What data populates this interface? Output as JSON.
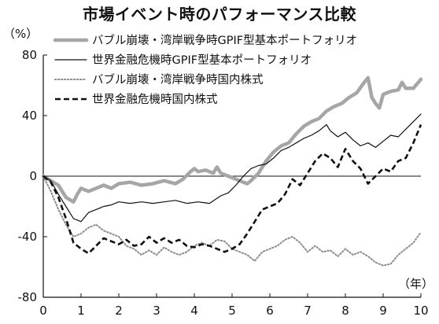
{
  "chart_data": {
    "type": "line",
    "title": "市場イベント時のパフォーマンス比較",
    "ylabel": "（%）",
    "xlabel": "（年）",
    "xlim": [
      0,
      10
    ],
    "ylim": [
      -80,
      80
    ],
    "x_ticks": [
      "0",
      "1",
      "2",
      "3",
      "4",
      "5",
      "6",
      "7",
      "8",
      "9",
      "10"
    ],
    "y_ticks": [
      "80",
      "40",
      "0",
      "-40",
      "-80"
    ],
    "y_tick_values": [
      80,
      40,
      0,
      -40,
      -80
    ],
    "zero_line": true,
    "legend_position": "top-right",
    "series": [
      {
        "name": "バブル崩壊・湾岸戦争時GPIF型基本ポートフォリオ",
        "style": "thick-gray",
        "color": "#a6a6a6",
        "points": [
          [
            0,
            0
          ],
          [
            0.2,
            -3
          ],
          [
            0.4,
            -6
          ],
          [
            0.6,
            -14
          ],
          [
            0.8,
            -17
          ],
          [
            0.9,
            -12
          ],
          [
            1.0,
            -8
          ],
          [
            1.2,
            -10
          ],
          [
            1.4,
            -8
          ],
          [
            1.6,
            -6
          ],
          [
            1.8,
            -8
          ],
          [
            2.0,
            -5
          ],
          [
            2.3,
            -4
          ],
          [
            2.6,
            -6
          ],
          [
            2.9,
            -5
          ],
          [
            3.2,
            -3
          ],
          [
            3.5,
            -5
          ],
          [
            3.7,
            -2
          ],
          [
            3.9,
            3
          ],
          [
            4.0,
            5
          ],
          [
            4.1,
            3
          ],
          [
            4.3,
            4
          ],
          [
            4.5,
            2
          ],
          [
            4.6,
            6
          ],
          [
            4.7,
            2
          ],
          [
            5.0,
            -1
          ],
          [
            5.2,
            -3
          ],
          [
            5.4,
            -5
          ],
          [
            5.5,
            -3
          ],
          [
            5.7,
            2
          ],
          [
            5.9,
            10
          ],
          [
            6.1,
            16
          ],
          [
            6.3,
            20
          ],
          [
            6.5,
            22
          ],
          [
            6.7,
            28
          ],
          [
            6.9,
            33
          ],
          [
            7.1,
            36
          ],
          [
            7.3,
            38
          ],
          [
            7.5,
            43
          ],
          [
            7.7,
            46
          ],
          [
            7.9,
            48
          ],
          [
            8.1,
            52
          ],
          [
            8.3,
            55
          ],
          [
            8.5,
            62
          ],
          [
            8.6,
            65
          ],
          [
            8.7,
            52
          ],
          [
            8.8,
            48
          ],
          [
            8.9,
            45
          ],
          [
            9.0,
            54
          ],
          [
            9.2,
            56
          ],
          [
            9.4,
            57
          ],
          [
            9.5,
            62
          ],
          [
            9.6,
            58
          ],
          [
            9.8,
            58
          ],
          [
            10.0,
            64
          ]
        ]
      },
      {
        "name": "世界金融危機時GPIF型基本ポートフォリオ",
        "style": "thin-black",
        "color": "#111111",
        "points": [
          [
            0,
            0
          ],
          [
            0.2,
            -3
          ],
          [
            0.4,
            -12
          ],
          [
            0.6,
            -20
          ],
          [
            0.8,
            -28
          ],
          [
            1.0,
            -30
          ],
          [
            1.2,
            -24
          ],
          [
            1.4,
            -22
          ],
          [
            1.6,
            -20
          ],
          [
            1.8,
            -19
          ],
          [
            2.0,
            -17
          ],
          [
            2.3,
            -18
          ],
          [
            2.6,
            -17
          ],
          [
            2.9,
            -18
          ],
          [
            3.2,
            -17
          ],
          [
            3.5,
            -16
          ],
          [
            3.8,
            -18
          ],
          [
            4.1,
            -17
          ],
          [
            4.4,
            -18
          ],
          [
            4.7,
            -13
          ],
          [
            4.9,
            -11
          ],
          [
            5.1,
            -6
          ],
          [
            5.3,
            0
          ],
          [
            5.5,
            5
          ],
          [
            5.7,
            7
          ],
          [
            5.9,
            8
          ],
          [
            6.1,
            12
          ],
          [
            6.3,
            17
          ],
          [
            6.5,
            19
          ],
          [
            6.7,
            22
          ],
          [
            6.9,
            25
          ],
          [
            7.1,
            27
          ],
          [
            7.3,
            30
          ],
          [
            7.5,
            34
          ],
          [
            7.6,
            30
          ],
          [
            7.8,
            26
          ],
          [
            8.0,
            29
          ],
          [
            8.2,
            24
          ],
          [
            8.4,
            20
          ],
          [
            8.6,
            22
          ],
          [
            8.8,
            19
          ],
          [
            9.0,
            23
          ],
          [
            9.2,
            27
          ],
          [
            9.4,
            26
          ],
          [
            9.6,
            31
          ],
          [
            9.8,
            36
          ],
          [
            10.0,
            41
          ]
        ]
      },
      {
        "name": "バブル崩壊・湾岸戦争時国内株式",
        "style": "dotted-gray",
        "color": "#8c8c8c",
        "points": [
          [
            0,
            0
          ],
          [
            0.2,
            -10
          ],
          [
            0.4,
            -22
          ],
          [
            0.6,
            -32
          ],
          [
            0.8,
            -40
          ],
          [
            1.0,
            -38
          ],
          [
            1.2,
            -34
          ],
          [
            1.4,
            -32
          ],
          [
            1.6,
            -36
          ],
          [
            1.8,
            -38
          ],
          [
            2.0,
            -40
          ],
          [
            2.2,
            -46
          ],
          [
            2.4,
            -48
          ],
          [
            2.6,
            -52
          ],
          [
            2.8,
            -49
          ],
          [
            3.0,
            -52
          ],
          [
            3.2,
            -47
          ],
          [
            3.4,
            -50
          ],
          [
            3.6,
            -52
          ],
          [
            3.8,
            -50
          ],
          [
            4.0,
            -46
          ],
          [
            4.2,
            -44
          ],
          [
            4.4,
            -46
          ],
          [
            4.6,
            -42
          ],
          [
            4.8,
            -43
          ],
          [
            5.0,
            -48
          ],
          [
            5.2,
            -50
          ],
          [
            5.4,
            -52
          ],
          [
            5.6,
            -56
          ],
          [
            5.8,
            -50
          ],
          [
            6.0,
            -48
          ],
          [
            6.2,
            -46
          ],
          [
            6.4,
            -42
          ],
          [
            6.6,
            -40
          ],
          [
            6.8,
            -44
          ],
          [
            7.0,
            -50
          ],
          [
            7.2,
            -46
          ],
          [
            7.4,
            -50
          ],
          [
            7.6,
            -49
          ],
          [
            7.8,
            -53
          ],
          [
            8.0,
            -48
          ],
          [
            8.2,
            -52
          ],
          [
            8.4,
            -50
          ],
          [
            8.6,
            -53
          ],
          [
            8.8,
            -57
          ],
          [
            9.0,
            -59
          ],
          [
            9.2,
            -58
          ],
          [
            9.4,
            -52
          ],
          [
            9.6,
            -48
          ],
          [
            9.8,
            -44
          ],
          [
            10.0,
            -37
          ]
        ]
      },
      {
        "name": "世界金融危機時国内株式",
        "style": "dashed-black",
        "color": "#111111",
        "points": [
          [
            0,
            0
          ],
          [
            0.2,
            -4
          ],
          [
            0.4,
            -14
          ],
          [
            0.6,
            -28
          ],
          [
            0.8,
            -44
          ],
          [
            1.0,
            -48
          ],
          [
            1.2,
            -51
          ],
          [
            1.4,
            -46
          ],
          [
            1.6,
            -41
          ],
          [
            1.8,
            -43
          ],
          [
            2.0,
            -45
          ],
          [
            2.2,
            -42
          ],
          [
            2.4,
            -46
          ],
          [
            2.6,
            -45
          ],
          [
            2.8,
            -40
          ],
          [
            3.0,
            -44
          ],
          [
            3.2,
            -41
          ],
          [
            3.4,
            -44
          ],
          [
            3.6,
            -42
          ],
          [
            3.8,
            -46
          ],
          [
            4.0,
            -47
          ],
          [
            4.2,
            -45
          ],
          [
            4.4,
            -46
          ],
          [
            4.6,
            -48
          ],
          [
            4.8,
            -50
          ],
          [
            5.0,
            -48
          ],
          [
            5.2,
            -45
          ],
          [
            5.4,
            -38
          ],
          [
            5.6,
            -30
          ],
          [
            5.8,
            -22
          ],
          [
            6.0,
            -20
          ],
          [
            6.2,
            -18
          ],
          [
            6.4,
            -12
          ],
          [
            6.6,
            -2
          ],
          [
            6.8,
            -6
          ],
          [
            7.0,
            2
          ],
          [
            7.2,
            10
          ],
          [
            7.4,
            15
          ],
          [
            7.6,
            12
          ],
          [
            7.8,
            6
          ],
          [
            8.0,
            18
          ],
          [
            8.2,
            10
          ],
          [
            8.4,
            5
          ],
          [
            8.6,
            -5
          ],
          [
            8.8,
            0
          ],
          [
            9.0,
            5
          ],
          [
            9.2,
            3
          ],
          [
            9.4,
            10
          ],
          [
            9.6,
            12
          ],
          [
            9.8,
            22
          ],
          [
            10.0,
            34
          ]
        ]
      }
    ]
  }
}
